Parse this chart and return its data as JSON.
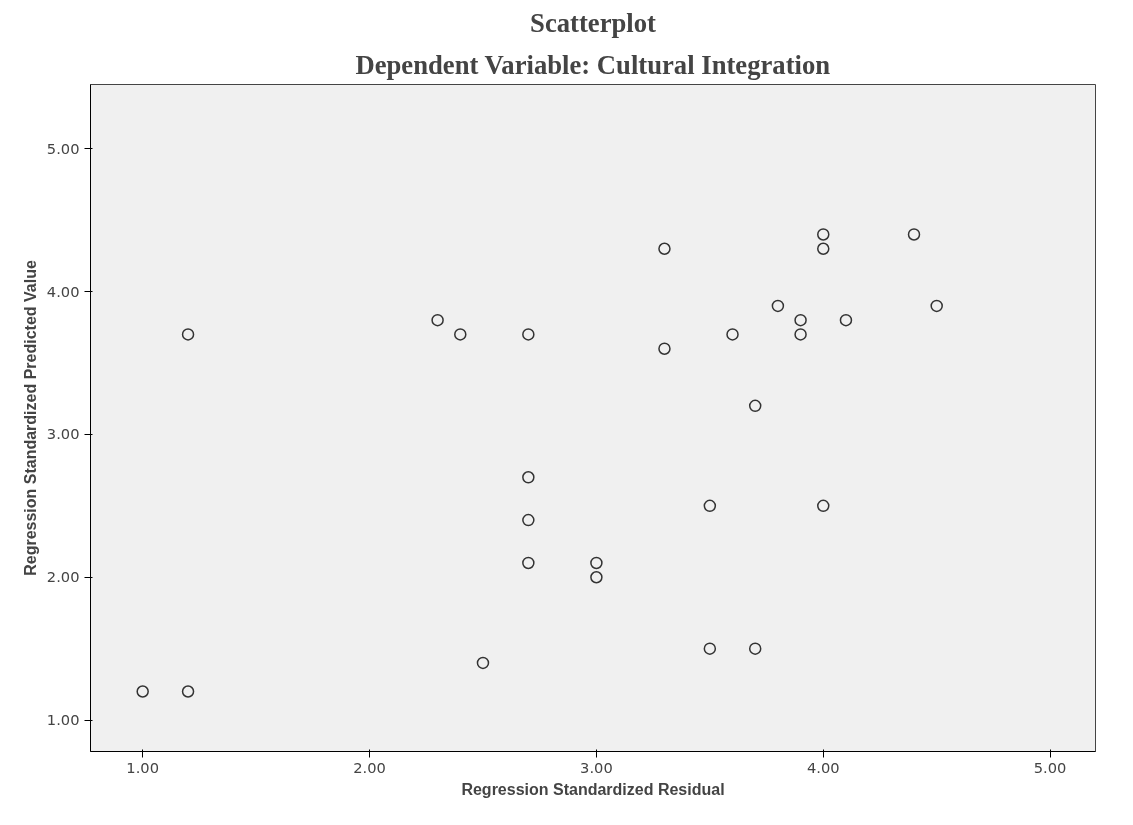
{
  "chart_data": {
    "type": "scatter",
    "title": "Scatterplot",
    "subtitle": "Dependent Variable: Cultural Integration",
    "xlabel": "Regression Standardized Residual",
    "ylabel": "Regression Standardized Predicted Value",
    "x": [
      1.0,
      1.2,
      1.2,
      2.3,
      2.4,
      2.5,
      2.7,
      2.7,
      2.7,
      2.7,
      3.0,
      3.0,
      3.3,
      3.3,
      3.5,
      3.5,
      3.6,
      3.7,
      3.7,
      3.8,
      3.9,
      3.9,
      4.0,
      4.0,
      4.0,
      4.1,
      4.4,
      4.5
    ],
    "values": [
      1.2,
      1.2,
      3.7,
      3.8,
      3.7,
      1.4,
      3.7,
      2.7,
      2.4,
      2.1,
      2.1,
      2.0,
      4.3,
      3.6,
      2.5,
      1.5,
      3.7,
      3.2,
      1.5,
      3.9,
      3.8,
      3.7,
      4.4,
      4.3,
      2.5,
      3.8,
      4.4,
      3.9
    ],
    "color": "#333333",
    "marker": "circle",
    "xlim": [
      0.77,
      5.2
    ],
    "ylim": [
      0.78,
      5.45
    ],
    "xticks": [
      {
        "value": 1,
        "label": "1.00"
      },
      {
        "value": 2,
        "label": "2.00"
      },
      {
        "value": 3,
        "label": "3.00"
      },
      {
        "value": 4,
        "label": "4.00"
      },
      {
        "value": 5,
        "label": "5.00"
      }
    ],
    "yticks": [
      {
        "value": 1,
        "label": "1.00"
      },
      {
        "value": 2,
        "label": "2.00"
      },
      {
        "value": 3,
        "label": "3.00"
      },
      {
        "value": 4,
        "label": "4.00"
      },
      {
        "value": 5,
        "label": "5.00"
      }
    ],
    "grid": false
  }
}
